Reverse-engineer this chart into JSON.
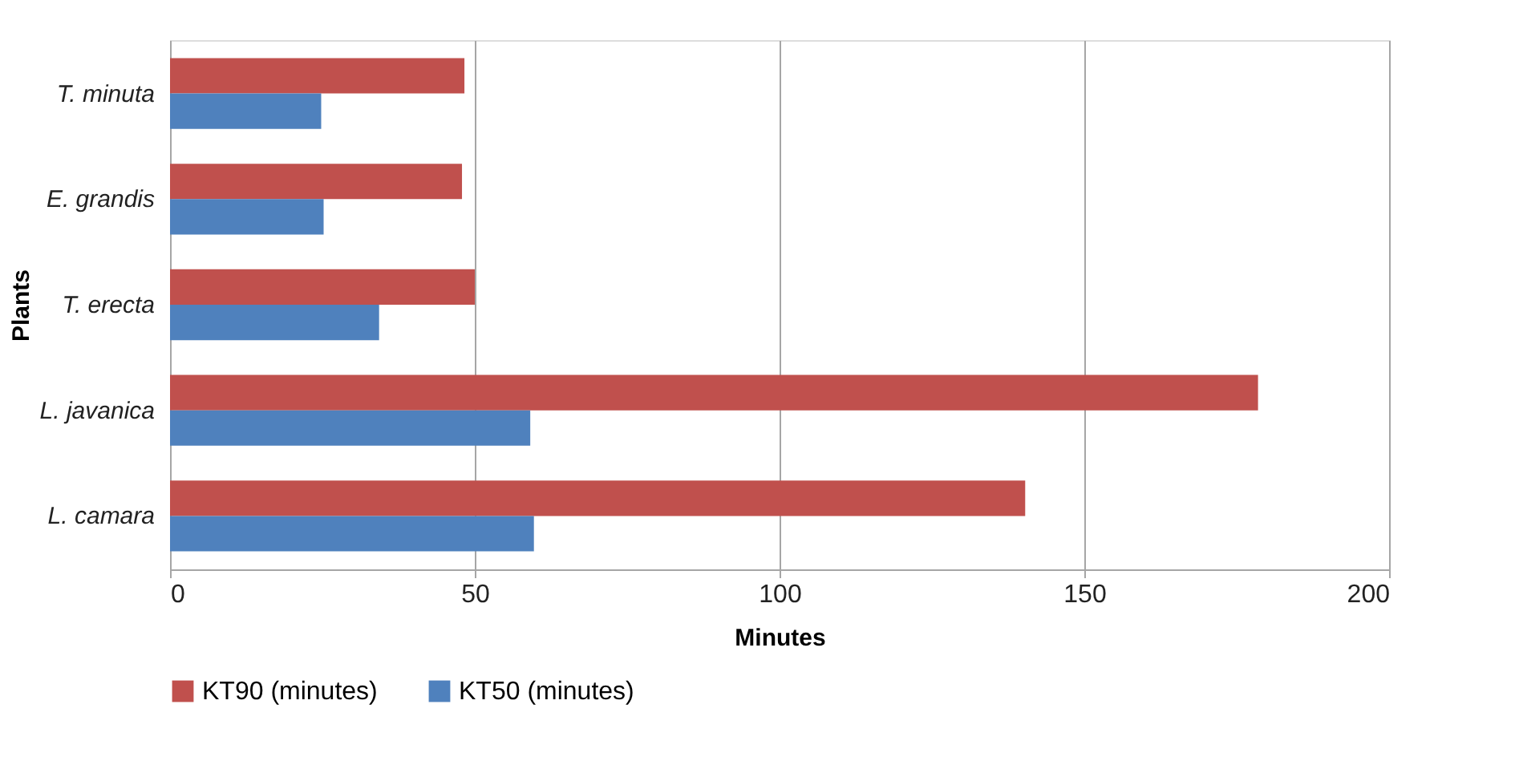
{
  "chart_data": {
    "type": "bar",
    "orientation": "horizontal",
    "xlabel": "Minutes",
    "ylabel": "Plants",
    "categories": [
      "T. minuta",
      "E. grandis",
      "T. erecta",
      "L. javanica",
      "L. camara"
    ],
    "series": [
      {
        "name": "KT90 (minutes)",
        "color": "#c0504d",
        "values": [
          48.3,
          47.9,
          50,
          178.5,
          140.3
        ]
      },
      {
        "name": "KT50 (minutes)",
        "color": "#4f81bd",
        "values": [
          24.8,
          25.2,
          34.3,
          59.1,
          59.7
        ]
      }
    ],
    "xlim": [
      0,
      200
    ],
    "xticks": [
      0,
      50,
      100,
      150,
      200
    ],
    "grid": "x",
    "legend": "bottom"
  }
}
